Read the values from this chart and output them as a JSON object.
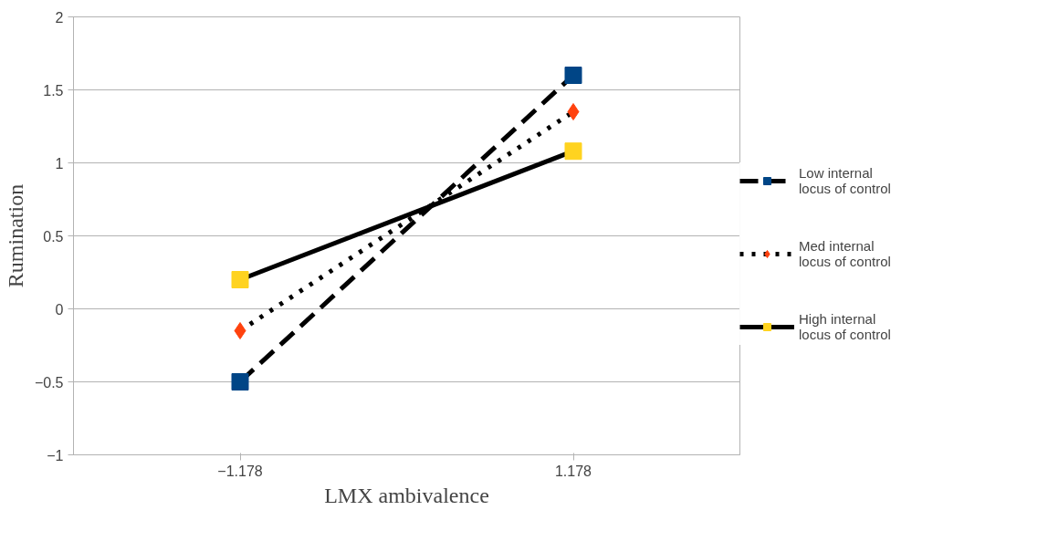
{
  "chart_data": {
    "type": "line",
    "xlabel": "LMX ambivalence",
    "ylabel": "Rumination",
    "x": [
      -1.178,
      1.178
    ],
    "xlim": [
      -2.356,
      2.356
    ],
    "xticks": [
      -1.178,
      1.178
    ],
    "series": [
      {
        "name": "Low internal locus of control",
        "color": "#000000",
        "colors": [
          "#004586",
          "#004586"
        ],
        "line_style": "dashed",
        "marker": "square",
        "values": [
          -0.5,
          1.6
        ]
      },
      {
        "name": "Med internal locus of control",
        "color": "#000000",
        "colors": [
          "#ff420e",
          "#ff420e"
        ],
        "line_style": "dotted",
        "marker": "diamond",
        "values": [
          -0.15,
          1.35
        ]
      },
      {
        "name": "High internal locus of control",
        "color": "#000000",
        "colors": [
          "#ffd320",
          "#ffd320"
        ],
        "line_style": "solid",
        "marker": "square",
        "values": [
          0.2,
          1.08
        ]
      }
    ],
    "ylim": [
      -1,
      2
    ],
    "yticks": [
      -1,
      -0.5,
      0,
      0.5,
      1,
      1.5,
      2
    ],
    "grid": "y",
    "legend": "right"
  }
}
